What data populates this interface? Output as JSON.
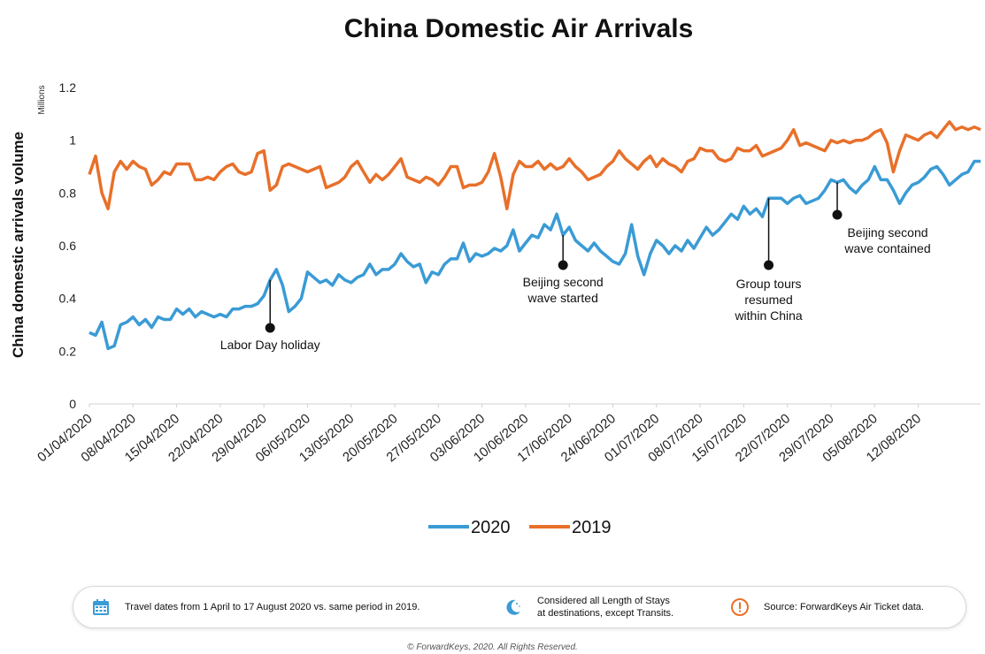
{
  "chart_data": {
    "type": "line",
    "title": "China Domestic Air Arrivals",
    "ylabel": "China domestic arrivals volume",
    "yunit": "Millions",
    "ylim": [
      0,
      1.2
    ],
    "yticks": [
      "0",
      "0.2",
      "0.4",
      "0.6",
      "0.8",
      "1",
      "1.2"
    ],
    "x_start": "01/04/2020",
    "x_end": "17/08/2020",
    "xtick_labels": [
      "01/04/2020",
      "08/04/2020",
      "15/04/2020",
      "22/04/2020",
      "29/04/2020",
      "06/05/2020",
      "13/05/2020",
      "20/05/2020",
      "27/05/2020",
      "03/06/2020",
      "10/06/2020",
      "17/06/2020",
      "24/06/2020",
      "01/07/2020",
      "08/07/2020",
      "15/07/2020",
      "22/07/2020",
      "29/07/2020",
      "05/08/2020",
      "12/08/2020"
    ],
    "grid": false,
    "legend_position": "bottom",
    "series": [
      {
        "name": "2020",
        "color": "#3a9bd5",
        "values": [
          0.27,
          0.26,
          0.31,
          0.21,
          0.22,
          0.3,
          0.31,
          0.33,
          0.3,
          0.32,
          0.29,
          0.33,
          0.32,
          0.32,
          0.36,
          0.34,
          0.36,
          0.33,
          0.35,
          0.34,
          0.33,
          0.34,
          0.33,
          0.36,
          0.36,
          0.37,
          0.37,
          0.38,
          0.41,
          0.47,
          0.51,
          0.45,
          0.35,
          0.37,
          0.4,
          0.5,
          0.48,
          0.46,
          0.47,
          0.45,
          0.49,
          0.47,
          0.46,
          0.48,
          0.49,
          0.53,
          0.49,
          0.51,
          0.51,
          0.53,
          0.57,
          0.54,
          0.52,
          0.53,
          0.46,
          0.5,
          0.49,
          0.53,
          0.55,
          0.55,
          0.61,
          0.54,
          0.57,
          0.56,
          0.57,
          0.59,
          0.58,
          0.6,
          0.66,
          0.58,
          0.61,
          0.64,
          0.63,
          0.68,
          0.66,
          0.72,
          0.64,
          0.67,
          0.62,
          0.6,
          0.58,
          0.61,
          0.58,
          0.56,
          0.54,
          0.53,
          0.57,
          0.68,
          0.56,
          0.49,
          0.57,
          0.62,
          0.6,
          0.57,
          0.6,
          0.58,
          0.62,
          0.59,
          0.63,
          0.67,
          0.64,
          0.66,
          0.69,
          0.72,
          0.7,
          0.75,
          0.72,
          0.74,
          0.71,
          0.78,
          0.78,
          0.78,
          0.76,
          0.78,
          0.79,
          0.76,
          0.77,
          0.78,
          0.81,
          0.85,
          0.84,
          0.85,
          0.82,
          0.8,
          0.83,
          0.85,
          0.9,
          0.85,
          0.85,
          0.81,
          0.76,
          0.8,
          0.83,
          0.84,
          0.86,
          0.89,
          0.9,
          0.87,
          0.83,
          0.85,
          0.87,
          0.88,
          0.92,
          0.92
        ]
      },
      {
        "name": "2019",
        "color": "#e8702a",
        "values": [
          0.87,
          0.94,
          0.8,
          0.74,
          0.88,
          0.92,
          0.89,
          0.92,
          0.9,
          0.89,
          0.83,
          0.85,
          0.88,
          0.87,
          0.91,
          0.91,
          0.91,
          0.85,
          0.85,
          0.86,
          0.85,
          0.88,
          0.9,
          0.91,
          0.88,
          0.87,
          0.88,
          0.95,
          0.96,
          0.81,
          0.83,
          0.9,
          0.91,
          0.9,
          0.89,
          0.88,
          0.89,
          0.9,
          0.82,
          0.83,
          0.84,
          0.86,
          0.9,
          0.92,
          0.88,
          0.84,
          0.87,
          0.85,
          0.87,
          0.9,
          0.93,
          0.86,
          0.85,
          0.84,
          0.86,
          0.85,
          0.83,
          0.86,
          0.9,
          0.9,
          0.82,
          0.83,
          0.83,
          0.84,
          0.88,
          0.95,
          0.86,
          0.74,
          0.87,
          0.92,
          0.9,
          0.9,
          0.92,
          0.89,
          0.91,
          0.89,
          0.9,
          0.93,
          0.9,
          0.88,
          0.85,
          0.86,
          0.87,
          0.9,
          0.92,
          0.96,
          0.93,
          0.91,
          0.89,
          0.92,
          0.94,
          0.9,
          0.93,
          0.91,
          0.9,
          0.88,
          0.92,
          0.93,
          0.97,
          0.96,
          0.96,
          0.93,
          0.92,
          0.93,
          0.97,
          0.96,
          0.96,
          0.98,
          0.94,
          0.95,
          0.96,
          0.97,
          1.0,
          1.04,
          0.98,
          0.99,
          0.98,
          0.97,
          0.96,
          1.0,
          0.99,
          1.0,
          0.99,
          1.0,
          1.0,
          1.01,
          1.03,
          1.04,
          0.99,
          0.88,
          0.96,
          1.02,
          1.01,
          1.0,
          1.02,
          1.03,
          1.01,
          1.04,
          1.07,
          1.04,
          1.05,
          1.04,
          1.05,
          1.04
        ]
      }
    ],
    "annotations": [
      {
        "key": "labor",
        "lines": [
          "Labor Day holiday"
        ],
        "date_index": 29,
        "series": "2020"
      },
      {
        "key": "beijing_start",
        "lines": [
          "Beijing second",
          "wave started"
        ],
        "date_index": 76,
        "series": "2020"
      },
      {
        "key": "group_tours",
        "lines": [
          "Group tours",
          "resumed",
          "within China"
        ],
        "date_index": 109,
        "series": "2020"
      },
      {
        "key": "beijing_contained",
        "lines": [
          "Beijing second",
          "wave contained"
        ],
        "date_index": 120,
        "series": "2020"
      }
    ]
  },
  "footer": {
    "item1": "Travel dates from 1 April to 17 August 2020 vs. same period in 2019.",
    "item2_line1": "Considered all Length of Stays",
    "item2_line2": "at destinations, except Transits.",
    "item3": "Source: ForwardKeys Air Ticket data.",
    "icons": [
      "calendar-icon",
      "moon-icon",
      "alert-icon"
    ]
  },
  "copyright": "© ForwardKeys, 2020. All Rights Reserved."
}
